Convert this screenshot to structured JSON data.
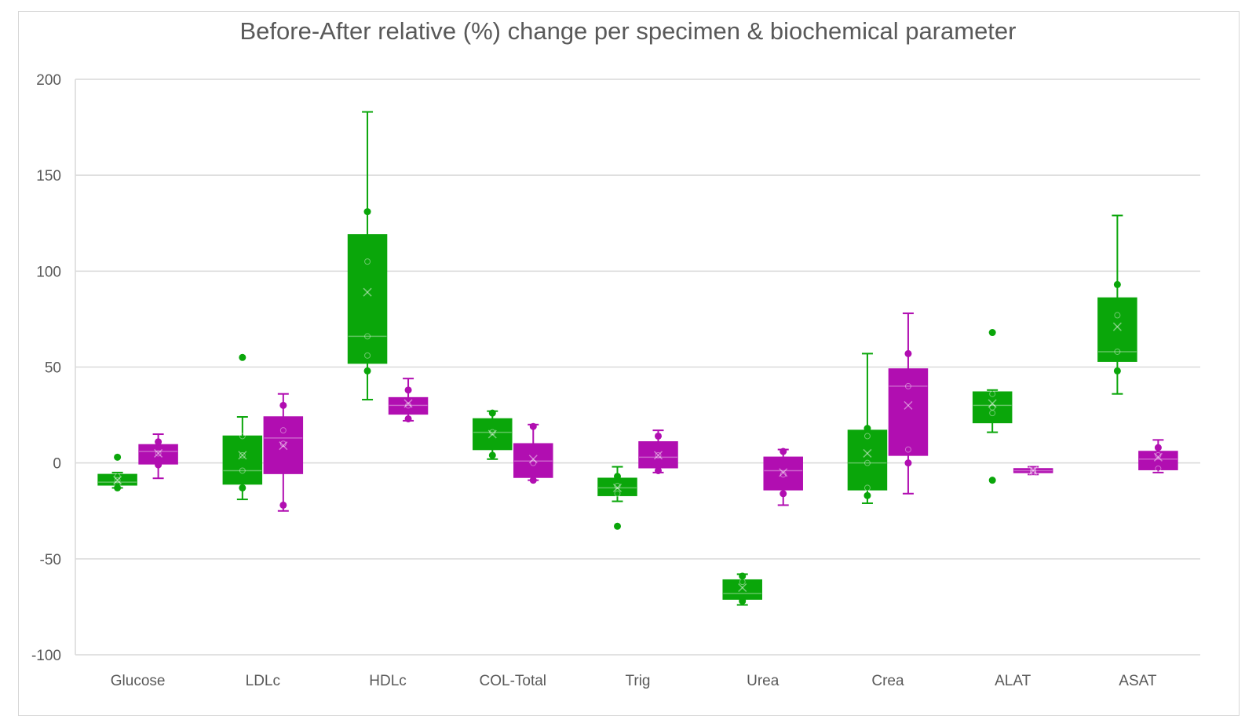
{
  "chart_data": {
    "type": "box",
    "title": "Before-After relative (%) change per specimen & biochemical parameter",
    "xlabel": "",
    "ylabel": "",
    "ylim": [
      -100,
      200
    ],
    "yticks": [
      -100,
      -50,
      0,
      50,
      100,
      150,
      200
    ],
    "grid": true,
    "categories": [
      "Glucose",
      "LDLc",
      "HDLc",
      "COL-Total",
      "Trig",
      "Urea",
      "Crea",
      "ALAT",
      "ASAT"
    ],
    "series": [
      {
        "color": "#0aa60a",
        "boxes": [
          {
            "min": -13,
            "q1": -11.5,
            "median": -10,
            "q3": -6,
            "max": -5,
            "mean": -9,
            "points": [
              -13,
              -11,
              -9,
              -7
            ],
            "outliers": [
              3
            ]
          },
          {
            "min": -19,
            "q1": -11,
            "median": -4,
            "q3": 14,
            "max": 24,
            "mean": 4,
            "points": [
              -13,
              -4,
              4,
              14
            ],
            "outliers": [
              55
            ]
          },
          {
            "min": 33,
            "q1": 52,
            "median": 66,
            "q3": 119,
            "max": 183,
            "mean": 89,
            "points": [
              48,
              56,
              66,
              105,
              131
            ],
            "outliers": []
          },
          {
            "min": 2,
            "q1": 7,
            "median": 16,
            "q3": 23,
            "max": 27,
            "mean": 15,
            "points": [
              4,
              16,
              26
            ],
            "outliers": []
          },
          {
            "min": -20,
            "q1": -17,
            "median": -13,
            "q3": -8,
            "max": -2,
            "mean": -13,
            "points": [
              -16,
              -12,
              -7
            ],
            "outliers": [
              -33
            ]
          },
          {
            "min": -74,
            "q1": -71,
            "median": -68,
            "q3": -61,
            "max": -58,
            "mean": -65,
            "points": [
              -72,
              -62,
              -59
            ],
            "outliers": []
          },
          {
            "min": -21,
            "q1": -14,
            "median": 0,
            "q3": 17,
            "max": 57,
            "mean": 5,
            "points": [
              -17,
              -13,
              0,
              14,
              18
            ],
            "outliers": []
          },
          {
            "min": 16,
            "q1": 21,
            "median": 30,
            "q3": 37,
            "max": 38,
            "mean": 31,
            "points": [
              26,
              29,
              36
            ],
            "outliers": [
              68,
              -9
            ]
          },
          {
            "min": 36,
            "q1": 53,
            "median": 58,
            "q3": 86,
            "max": 129,
            "mean": 71,
            "points": [
              48,
              58,
              77,
              93
            ],
            "outliers": []
          }
        ]
      },
      {
        "color": "#b10eb1",
        "boxes": [
          {
            "min": -8,
            "q1": -0.5,
            "median": 6,
            "q3": 9.5,
            "max": 15,
            "mean": 5,
            "points": [
              -1,
              5,
              11
            ],
            "outliers": []
          },
          {
            "min": -25,
            "q1": -5.5,
            "median": 13,
            "q3": 24,
            "max": 36,
            "mean": 9,
            "points": [
              -22,
              10,
              17,
              30
            ],
            "outliers": []
          },
          {
            "min": 22,
            "q1": 25.5,
            "median": 30,
            "q3": 34,
            "max": 44,
            "mean": 31,
            "points": [
              23,
              30,
              38
            ],
            "outliers": []
          },
          {
            "min": -9,
            "q1": -7.5,
            "median": 1,
            "q3": 10,
            "max": 20,
            "mean": 2,
            "points": [
              -9,
              0,
              19
            ],
            "outliers": []
          },
          {
            "min": -5,
            "q1": -2.5,
            "median": 3,
            "q3": 11,
            "max": 17,
            "mean": 4,
            "points": [
              -4,
              4,
              14
            ],
            "outliers": []
          },
          {
            "min": -22,
            "q1": -14,
            "median": -4,
            "q3": 3,
            "max": 7,
            "mean": -5,
            "points": [
              -16,
              -6,
              6
            ],
            "outliers": []
          },
          {
            "min": -16,
            "q1": 4,
            "median": 40,
            "q3": 49,
            "max": 78,
            "mean": 30,
            "points": [
              0,
              7,
              40,
              57
            ],
            "outliers": []
          },
          {
            "min": -6,
            "q1": -5,
            "median": -4,
            "q3": -3,
            "max": -2,
            "mean": -4,
            "points": [
              -5,
              -4
            ],
            "outliers": []
          },
          {
            "min": -5,
            "q1": -3.5,
            "median": 2,
            "q3": 6,
            "max": 12,
            "mean": 3,
            "points": [
              -3,
              4,
              8
            ],
            "outliers": []
          }
        ]
      }
    ]
  }
}
